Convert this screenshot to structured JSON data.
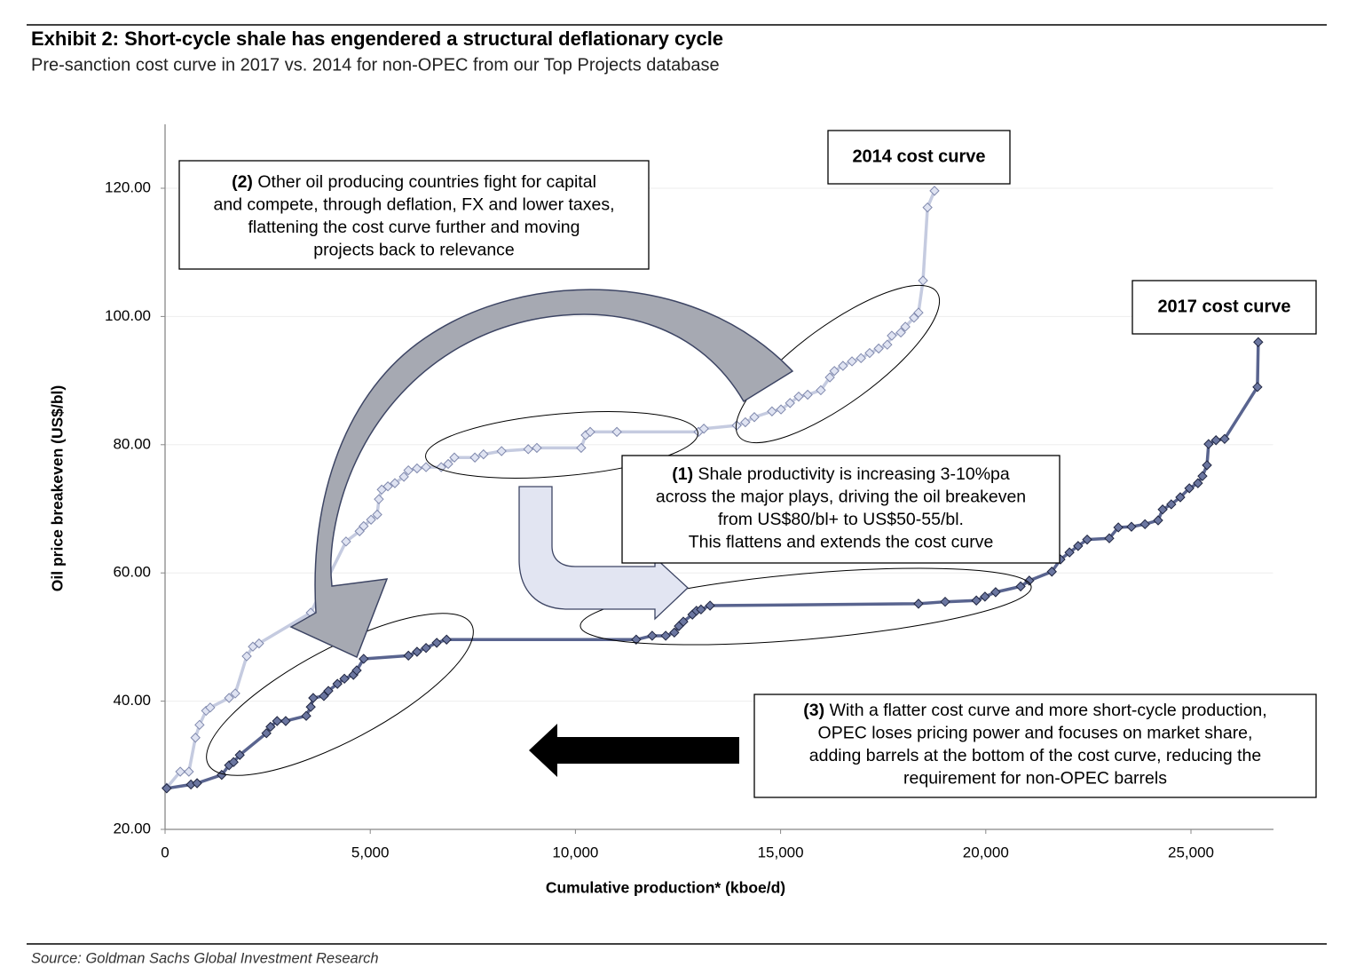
{
  "chart_data": {
    "type": "line",
    "title": "Exhibit 2: Short-cycle shale has engendered a structural deflationary cycle",
    "subtitle": "Pre-sanction cost curve in 2017 vs. 2014 for non-OPEC from our Top Projects database",
    "x_label": "Cumulative production* (kboe/d)",
    "y_label": "Oil price breakeven (US$/bl)",
    "source": "Source: Goldman Sachs Global Investment Research",
    "xlim": [
      0,
      27000
    ],
    "ylim": [
      20,
      130
    ],
    "xticks": [
      0,
      {
        "value": 5000,
        "label": "5,000"
      },
      {
        "value": 10000,
        "label": "10,000"
      },
      {
        "value": 15000,
        "label": "15,000"
      },
      {
        "value": 20000,
        "label": "20,000"
      },
      {
        "value": 25000,
        "label": "25,000"
      }
    ],
    "yticks": [
      {
        "value": 20,
        "label": "20.00"
      },
      {
        "value": 40,
        "label": "40.00"
      },
      {
        "value": 60,
        "label": "60.00"
      },
      {
        "value": 80,
        "label": "80.00"
      },
      {
        "value": 100,
        "label": "100.00"
      },
      {
        "value": 120,
        "label": "120.00"
      }
    ],
    "grid": true,
    "series": [
      {
        "name": "2014 cost curve",
        "color": "#c5cbe0",
        "marker_color": "#dfe3f2",
        "x": [
          40,
          370,
          580,
          740,
          840,
          1000,
          1100,
          1560,
          1710,
          1990,
          2140,
          2290,
          3550,
          4410,
          4740,
          4840,
          5020,
          5170,
          5210,
          5280,
          5430,
          5600,
          5820,
          5930,
          6140,
          6360,
          6730,
          6900,
          7050,
          7550,
          7760,
          8200,
          8850,
          9060,
          10140,
          10250,
          10360,
          11010,
          13000,
          13130,
          13930,
          14140,
          14360,
          14790,
          15010,
          15230,
          15440,
          15660,
          15980,
          16200,
          16310,
          16520,
          16740,
          16960,
          17170,
          17390,
          17600,
          17710,
          17930,
          18040,
          18250,
          18360,
          18470,
          18580,
          18750
        ],
        "values": [
          26.5,
          29,
          29,
          34.3,
          36.3,
          38.5,
          39,
          40.5,
          41.2,
          47,
          48.5,
          49,
          53.8,
          64.9,
          66.5,
          67.3,
          68.3,
          69.1,
          71.5,
          73,
          73.5,
          74,
          75,
          76,
          76.3,
          76.5,
          76.5,
          77,
          78,
          78,
          78.5,
          79,
          79.3,
          79.5,
          79.5,
          81.5,
          82,
          82,
          82,
          82.5,
          83,
          83.5,
          84.3,
          85.2,
          85.5,
          86.5,
          87.5,
          87.8,
          88.5,
          90.5,
          91.5,
          92.3,
          93,
          93.5,
          94.3,
          95,
          95.6,
          97,
          97.5,
          98.4,
          99.8,
          100.6,
          105.6,
          117,
          119.6
        ]
      },
      {
        "name": "2017 cost curve",
        "color": "#59648f",
        "marker_color": "#6b76a0",
        "x": [
          40,
          630,
          780,
          1380,
          1560,
          1670,
          1820,
          2470,
          2570,
          2730,
          2940,
          3440,
          3550,
          3610,
          3870,
          3980,
          4200,
          4370,
          4590,
          4670,
          4840,
          5930,
          6140,
          6360,
          6620,
          6860,
          11480,
          11870,
          12200,
          12410,
          12520,
          12630,
          12850,
          12950,
          13060,
          13280,
          18360,
          19010,
          19770,
          19980,
          20240,
          20850,
          21060,
          21610,
          21820,
          22040,
          22250,
          22470,
          23010,
          23230,
          23550,
          23880,
          24200,
          24310,
          24520,
          24740,
          24960,
          25170,
          25280,
          25390,
          25430,
          25610,
          25820,
          26620,
          26640
        ],
        "values": [
          26.4,
          27,
          27.2,
          28.5,
          30,
          30.5,
          31.6,
          35,
          36,
          36.9,
          36.9,
          37.7,
          39.1,
          40.5,
          40.8,
          41.6,
          42.7,
          43.5,
          44.1,
          44.8,
          46.6,
          47.1,
          47.7,
          48.3,
          49.1,
          49.6,
          49.6,
          50.2,
          50.2,
          50.7,
          51.7,
          52.4,
          53.5,
          54.1,
          54.3,
          54.9,
          55.2,
          55.5,
          55.7,
          56.3,
          57,
          57.9,
          58.8,
          60.2,
          62.1,
          63.2,
          64.2,
          65.2,
          65.4,
          67.1,
          67.2,
          67.6,
          68.2,
          69.9,
          70.7,
          71.8,
          73.2,
          74,
          75.1,
          76.8,
          80.1,
          80.7,
          80.9,
          89,
          96
        ]
      }
    ],
    "annotations": [
      {
        "marker": "(2)",
        "lines": [
          "Other oil producing countries fight for capital",
          "and compete, through deflation, FX and lower taxes,",
          "flattening the cost curve further and moving",
          "projects back to relevance"
        ]
      },
      {
        "marker": "(1)",
        "lines": [
          "Shale productivity is increasing 3-10%pa",
          "across the major plays, driving the oil breakeven",
          "from US$80/bl+ to US$50-55/bl.",
          "This flattens and extends the cost curve"
        ]
      },
      {
        "marker": "(3)",
        "lines": [
          "With a flatter cost curve and more short-cycle production,",
          "OPEC loses pricing power and focuses on market share,",
          "adding barrels at the bottom of the cost curve, reducing the",
          "requirement for non-OPEC barrels"
        ]
      }
    ]
  }
}
